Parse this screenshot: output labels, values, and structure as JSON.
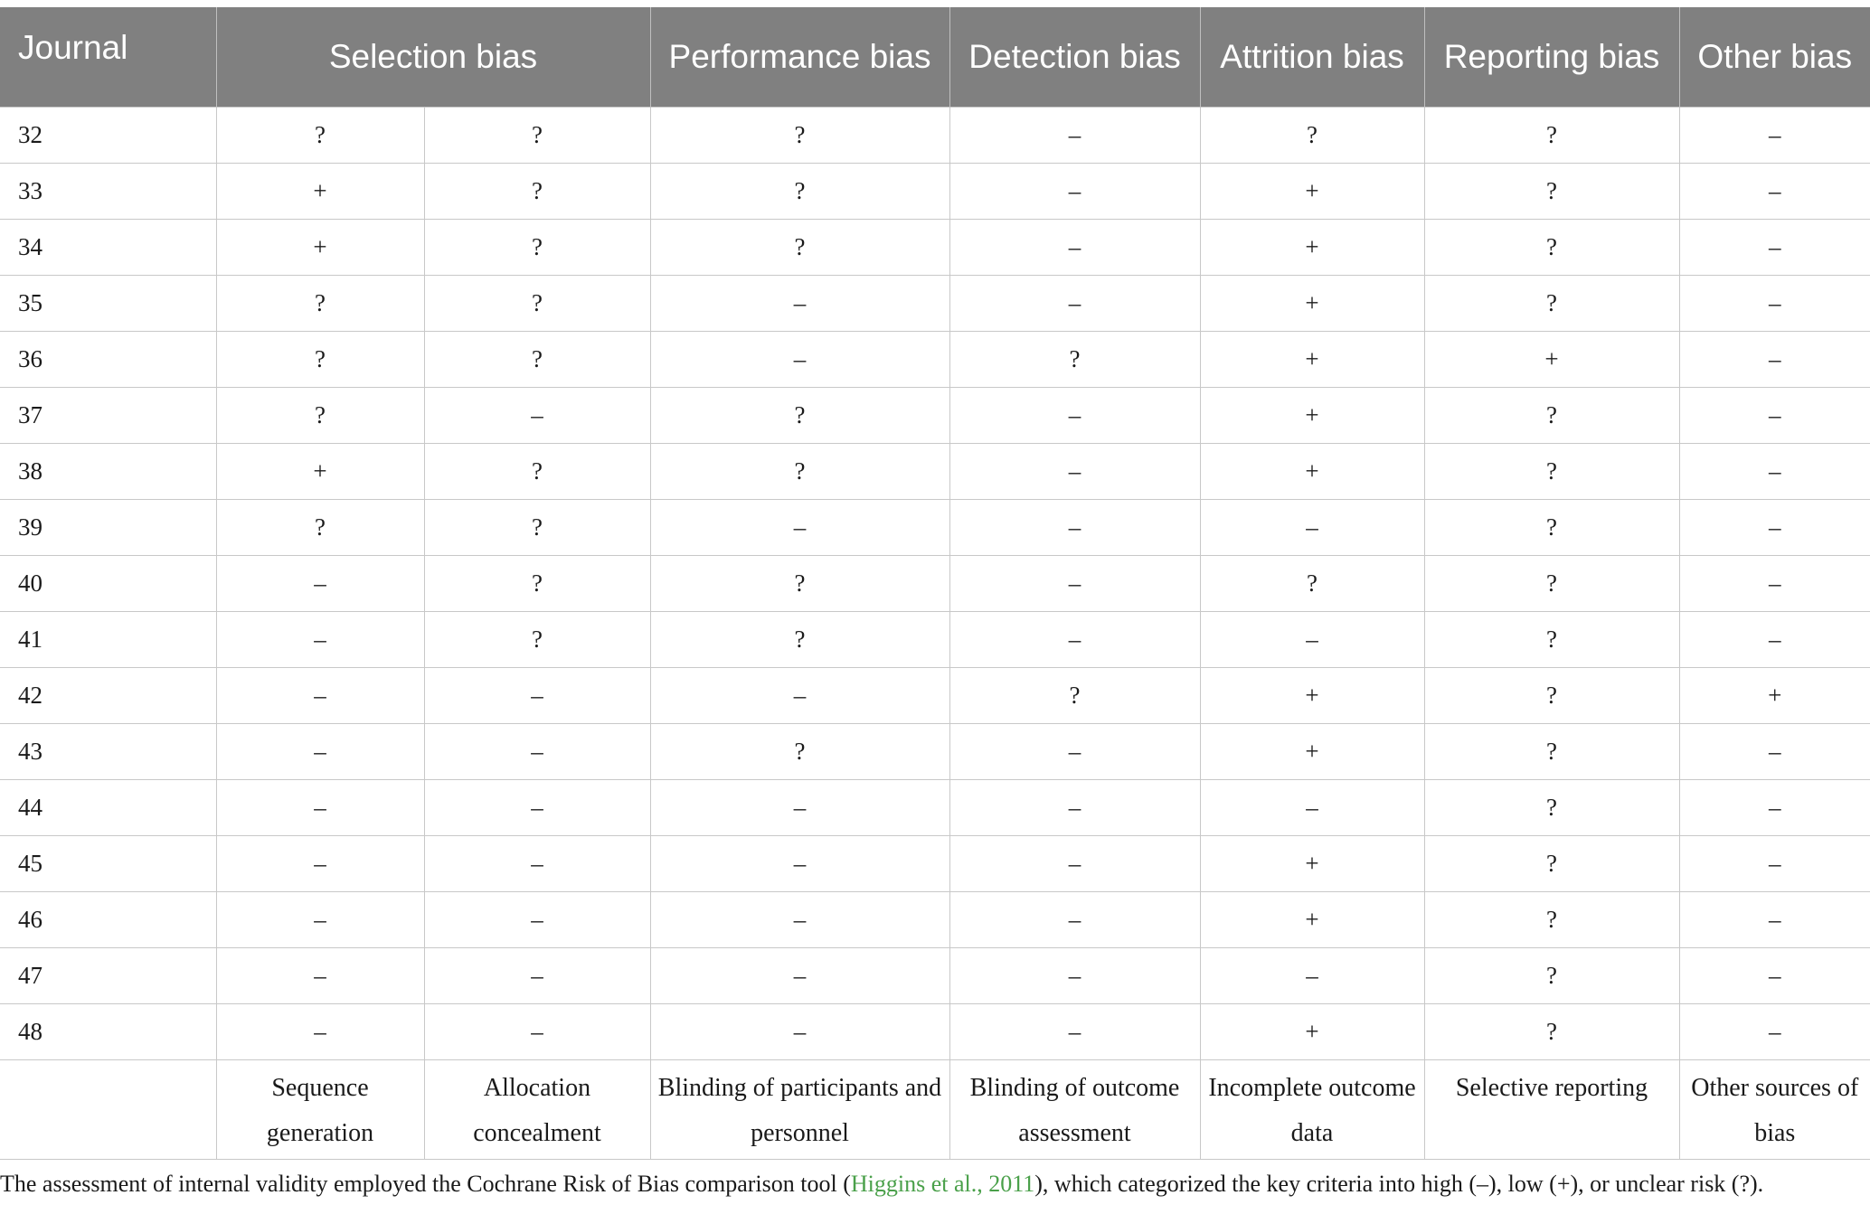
{
  "table": {
    "headers": [
      "Journal",
      "Selection bias",
      "Performance bias",
      "Detection bias",
      "Attrition bias",
      "Reporting bias",
      "Other bias"
    ],
    "rows": [
      [
        "32",
        "?",
        "?",
        "?",
        "–",
        "?",
        "?",
        "–"
      ],
      [
        "33",
        "+",
        "?",
        "?",
        "–",
        "+",
        "?",
        "–"
      ],
      [
        "34",
        "+",
        "?",
        "?",
        "–",
        "+",
        "?",
        "–"
      ],
      [
        "35",
        "?",
        "?",
        "–",
        "–",
        "+",
        "?",
        "–"
      ],
      [
        "36",
        "?",
        "?",
        "–",
        "?",
        "+",
        "+",
        "–"
      ],
      [
        "37",
        "?",
        "–",
        "?",
        "–",
        "+",
        "?",
        "–"
      ],
      [
        "38",
        "+",
        "?",
        "?",
        "–",
        "+",
        "?",
        "–"
      ],
      [
        "39",
        "?",
        "?",
        "–",
        "–",
        "–",
        "?",
        "–"
      ],
      [
        "40",
        "–",
        "?",
        "?",
        "–",
        "?",
        "?",
        "–"
      ],
      [
        "41",
        "–",
        "?",
        "?",
        "–",
        "–",
        "?",
        "–"
      ],
      [
        "42",
        "–",
        "–",
        "–",
        "?",
        "+",
        "?",
        "+"
      ],
      [
        "43",
        "–",
        "–",
        "?",
        "–",
        "+",
        "?",
        "–"
      ],
      [
        "44",
        "–",
        "–",
        "–",
        "–",
        "–",
        "?",
        "–"
      ],
      [
        "45",
        "–",
        "–",
        "–",
        "–",
        "+",
        "?",
        "–"
      ],
      [
        "46",
        "–",
        "–",
        "–",
        "–",
        "+",
        "?",
        "–"
      ],
      [
        "47",
        "–",
        "–",
        "–",
        "–",
        "–",
        "?",
        "–"
      ],
      [
        "48",
        "–",
        "–",
        "–",
        "–",
        "+",
        "?",
        "–"
      ]
    ],
    "footer": [
      "",
      "Sequence generation",
      "Allocation concealment",
      "Blinding of participants and personnel",
      "Blinding of outcome assessment",
      "Incomplete outcome data",
      "Selective reporting",
      "Other sources of bias"
    ]
  },
  "note": {
    "text_before": "The assessment of internal validity employed the Cochrane Risk of Bias comparison tool (",
    "reference": "Higgins et al., 2011",
    "text_after": "), which categorized the key criteria into high (–), low (+), or unclear risk (?).",
    "reference_color": "#4aa04a"
  },
  "colors": {
    "header_background": "#808080",
    "header_text": "#ffffff",
    "grid_lines": "#c8c8c8"
  }
}
